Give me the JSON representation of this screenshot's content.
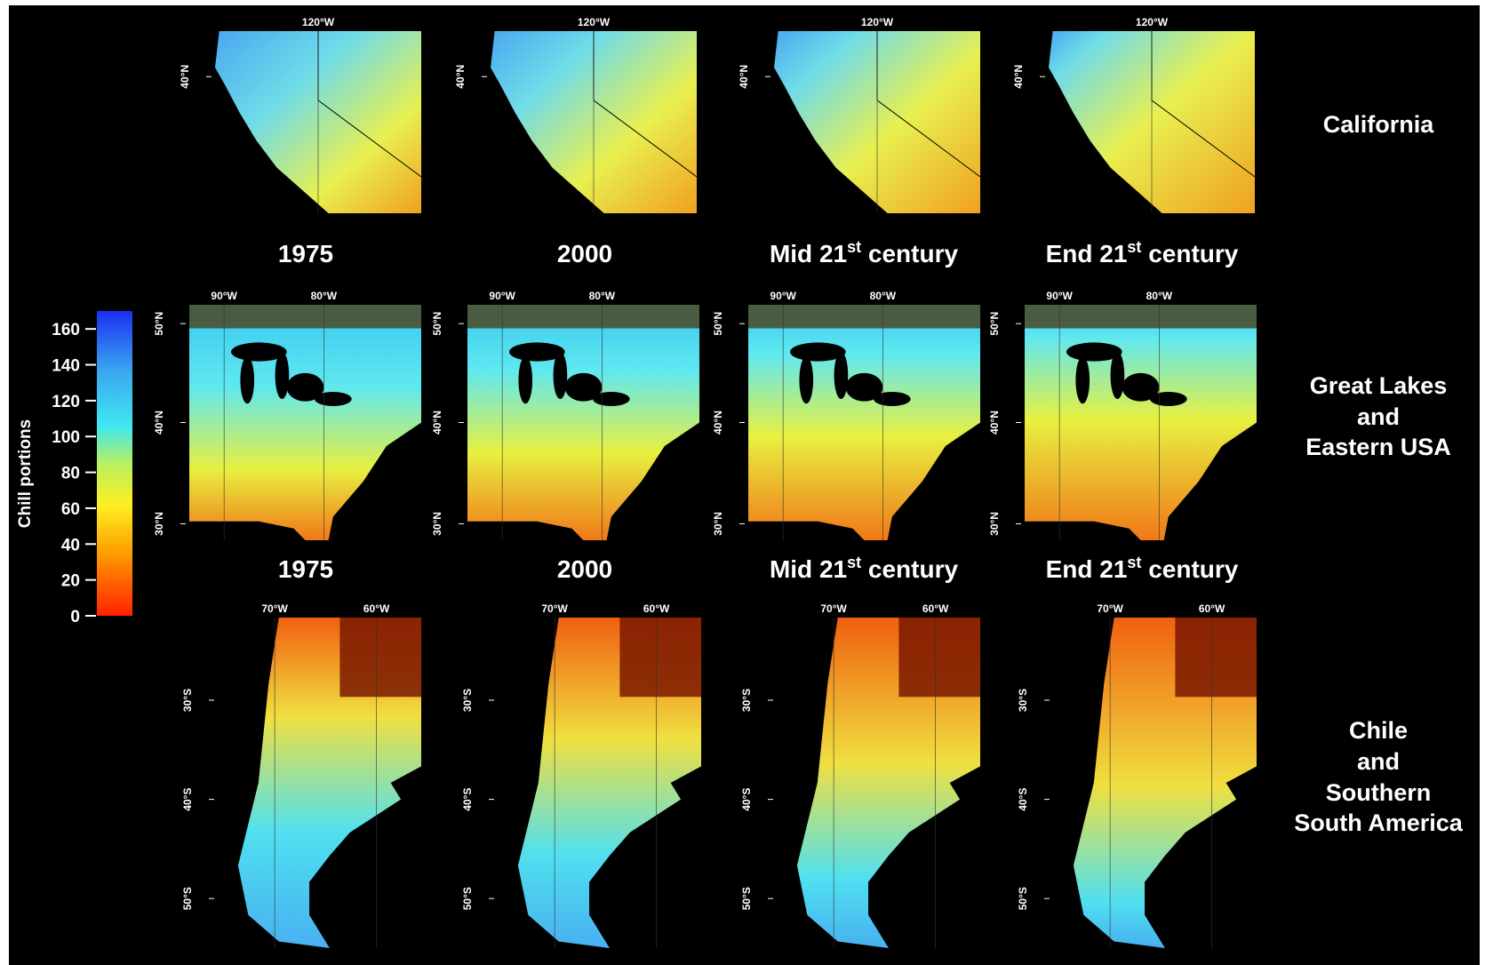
{
  "colorbar": {
    "label": "Chill portions",
    "lim": [
      0,
      170
    ],
    "ticks": [
      0,
      20,
      40,
      60,
      80,
      100,
      120,
      140,
      160
    ]
  },
  "periods": [
    {
      "text": "1975"
    },
    {
      "text": "2000"
    },
    {
      "text": "Mid 21",
      "sup": "st",
      "rest": " century"
    },
    {
      "text": "End 21",
      "sup": "st",
      "rest": " century"
    }
  ],
  "regions": [
    {
      "name_lines": [
        "California"
      ],
      "lon_ticks": [
        "120°W"
      ],
      "lat_ticks": [
        "40°N"
      ]
    },
    {
      "name_lines": [
        "Great Lakes",
        "and",
        "Eastern USA"
      ],
      "lon_ticks": [
        "90°W",
        "80°W"
      ],
      "lat_ticks": [
        "50°N",
        "40°N",
        "30°N"
      ]
    },
    {
      "name_lines": [
        "Chile",
        "and",
        "Southern",
        "South America"
      ],
      "lon_ticks": [
        "70°W",
        "60°W"
      ],
      "lat_ticks": [
        "30°S",
        "40°S",
        "50°S"
      ]
    }
  ]
}
